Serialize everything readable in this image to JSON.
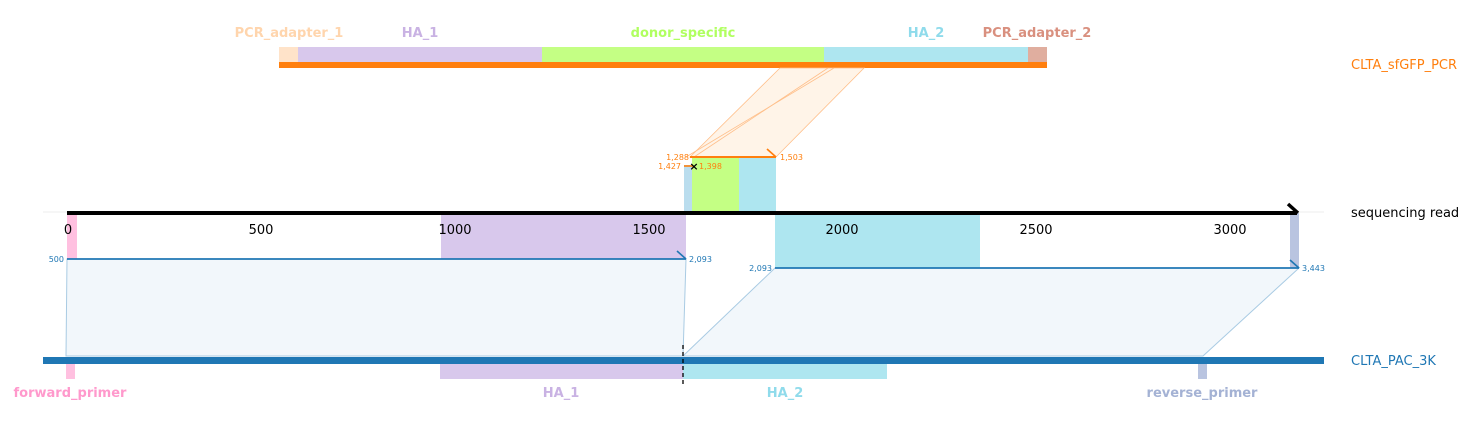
{
  "references": {
    "top": {
      "name": "CLTA_sfGFP_PCR",
      "color": "#ff7f0e",
      "features": [
        {
          "name": "PCR_adapter_1",
          "color": "#ffd5ad"
        },
        {
          "name": "HA_1",
          "color": "#c9b2e3"
        },
        {
          "name": "donor_specific",
          "color": "#b0ff60"
        },
        {
          "name": "HA_2",
          "color": "#8fdbeb"
        },
        {
          "name": "PCR_adapter_2",
          "color": "#d9907f"
        }
      ]
    },
    "read": {
      "name": "sequencing read",
      "color": "#000000",
      "ticks": [
        "0",
        "500",
        "1000",
        "1500",
        "2000",
        "2500",
        "3000"
      ]
    },
    "bottom": {
      "name": "CLTA_PAC_3K",
      "color": "#1f77b4",
      "features": [
        {
          "name": "forward_primer",
          "color": "#ff99cc"
        },
        {
          "name": "HA_1",
          "color": "#c9b2e3"
        },
        {
          "name": "HA_2",
          "color": "#8fdbeb"
        },
        {
          "name": "reverse_primer",
          "color": "#a4b2d4"
        }
      ]
    }
  },
  "alignments": {
    "top": {
      "read_start": "1,288",
      "read_end": "1,503",
      "ref_start": "1,427",
      "ref_end": "1,398",
      "mismatch_marker": "×"
    },
    "bottom_1": {
      "start": "500",
      "end": "2,093"
    },
    "bottom_2": {
      "start": "2,093",
      "end": "3,443"
    }
  }
}
